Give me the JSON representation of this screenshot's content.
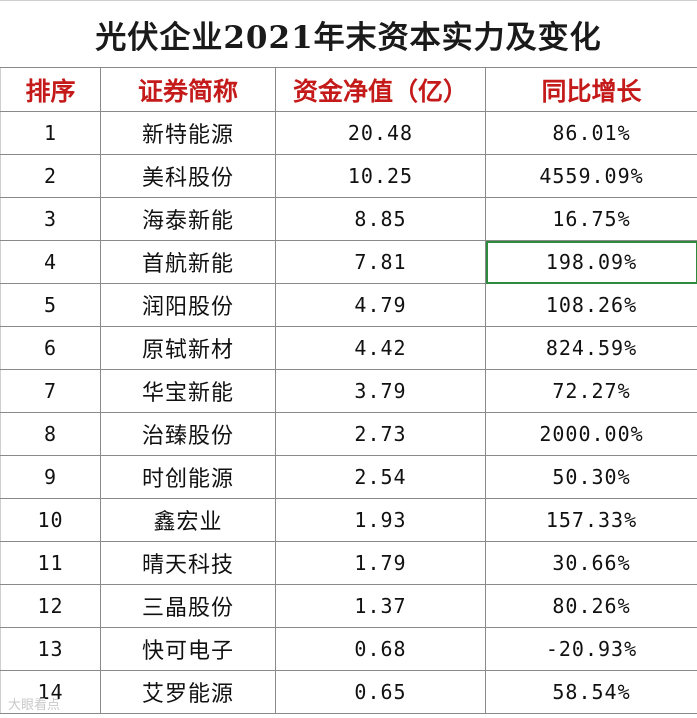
{
  "title": "光伏企业2021年末资本实力及变化",
  "headers": {
    "rank": "排序",
    "company": "证券简称",
    "net_assets": "资金净值（亿）",
    "yoy": "同比增长"
  },
  "rows": [
    {
      "rank": "1",
      "company": "新特能源",
      "net_assets": "20.48",
      "yoy": "86.01%"
    },
    {
      "rank": "2",
      "company": "美科股份",
      "net_assets": "10.25",
      "yoy": "4559.09%"
    },
    {
      "rank": "3",
      "company": "海泰新能",
      "net_assets": "8.85",
      "yoy": "16.75%"
    },
    {
      "rank": "4",
      "company": "首航新能",
      "net_assets": "7.81",
      "yoy": "198.09%"
    },
    {
      "rank": "5",
      "company": "润阳股份",
      "net_assets": "4.79",
      "yoy": "108.26%"
    },
    {
      "rank": "6",
      "company": "原轼新材",
      "net_assets": "4.42",
      "yoy": "824.59%"
    },
    {
      "rank": "7",
      "company": "华宝新能",
      "net_assets": "3.79",
      "yoy": "72.27%"
    },
    {
      "rank": "8",
      "company": "治臻股份",
      "net_assets": "2.73",
      "yoy": "2000.00%"
    },
    {
      "rank": "9",
      "company": "时创能源",
      "net_assets": "2.54",
      "yoy": "50.30%"
    },
    {
      "rank": "10",
      "company": "鑫宏业",
      "net_assets": "1.93",
      "yoy": "157.33%"
    },
    {
      "rank": "11",
      "company": "晴天科技",
      "net_assets": "1.79",
      "yoy": "30.66%"
    },
    {
      "rank": "12",
      "company": "三晶股份",
      "net_assets": "1.37",
      "yoy": "80.26%"
    },
    {
      "rank": "13",
      "company": "快可电子",
      "net_assets": "0.68",
      "yoy": "-20.93%"
    },
    {
      "rank": "14",
      "company": "艾罗能源",
      "net_assets": "0.65",
      "yoy": "58.54%"
    }
  ],
  "watermark": "大眼看点",
  "colors": {
    "header_text": "#c41a1a",
    "selection_border": "#2e8b3e",
    "grid_line": "#8a8a8a"
  }
}
